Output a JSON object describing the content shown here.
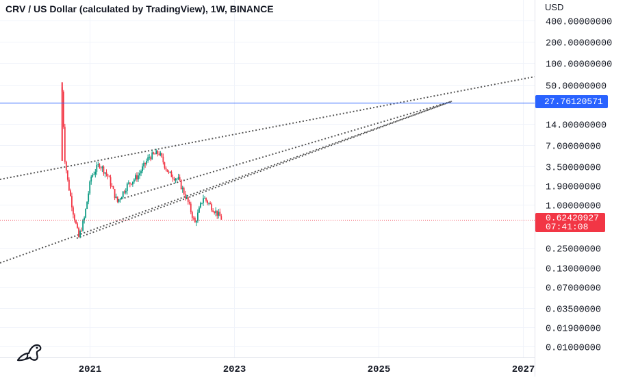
{
  "chart": {
    "title": "CRV / US Dollar (calculated by TradingView), 1W, BINANCE",
    "currency": "USD",
    "current_price": "0.62420927",
    "countdown": "07:41:08",
    "level_label": "27.76120571",
    "colors": {
      "up": "#089981",
      "down": "#f23645",
      "level_line": "#2962ff",
      "trendline": "#555555",
      "grid": "#f0f3fa"
    },
    "logo_icon": "tradingview-dino-icon"
  },
  "chart_data": {
    "type": "candlestick",
    "title": "CRV / US Dollar (calculated by TradingView), 1W, BINANCE",
    "ylabel": "USD",
    "y_scale": "log",
    "y_ticks": [
      "400.00000000",
      "200.00000000",
      "100.00000000",
      "50.00000000",
      "14.00000000",
      "7.00000000",
      "3.50000000",
      "1.90000000",
      "1.00000000",
      "0.25000000",
      "0.13000000",
      "0.07000000",
      "0.03500000",
      "0.01900000",
      "0.01000000"
    ],
    "x_ticks": [
      "2021",
      "2023",
      "2025",
      "2027"
    ],
    "current_price": 0.62420927,
    "horizontal_level": 27.76120571,
    "price_series": {
      "date": [
        "2020-08-14",
        "2020-08-28",
        "2020-09-11",
        "2020-10-09",
        "2020-11-06",
        "2020-12-04",
        "2021-01-08",
        "2021-02-19",
        "2021-04-02",
        "2021-05-21",
        "2021-07-09",
        "2021-09-03",
        "2021-10-29",
        "2021-12-17",
        "2022-02-04",
        "2022-03-25",
        "2022-05-13",
        "2022-06-17",
        "2022-07-29",
        "2022-09-16",
        "2022-11-04"
      ],
      "close": [
        40,
        4.5,
        2.2,
        0.8,
        0.35,
        0.65,
        2.5,
        3.8,
        2.6,
        1.1,
        1.9,
        2.6,
        4.8,
        5.5,
        2.8,
        2.3,
        1.1,
        0.55,
        1.3,
        0.9,
        0.62
      ]
    }
  }
}
